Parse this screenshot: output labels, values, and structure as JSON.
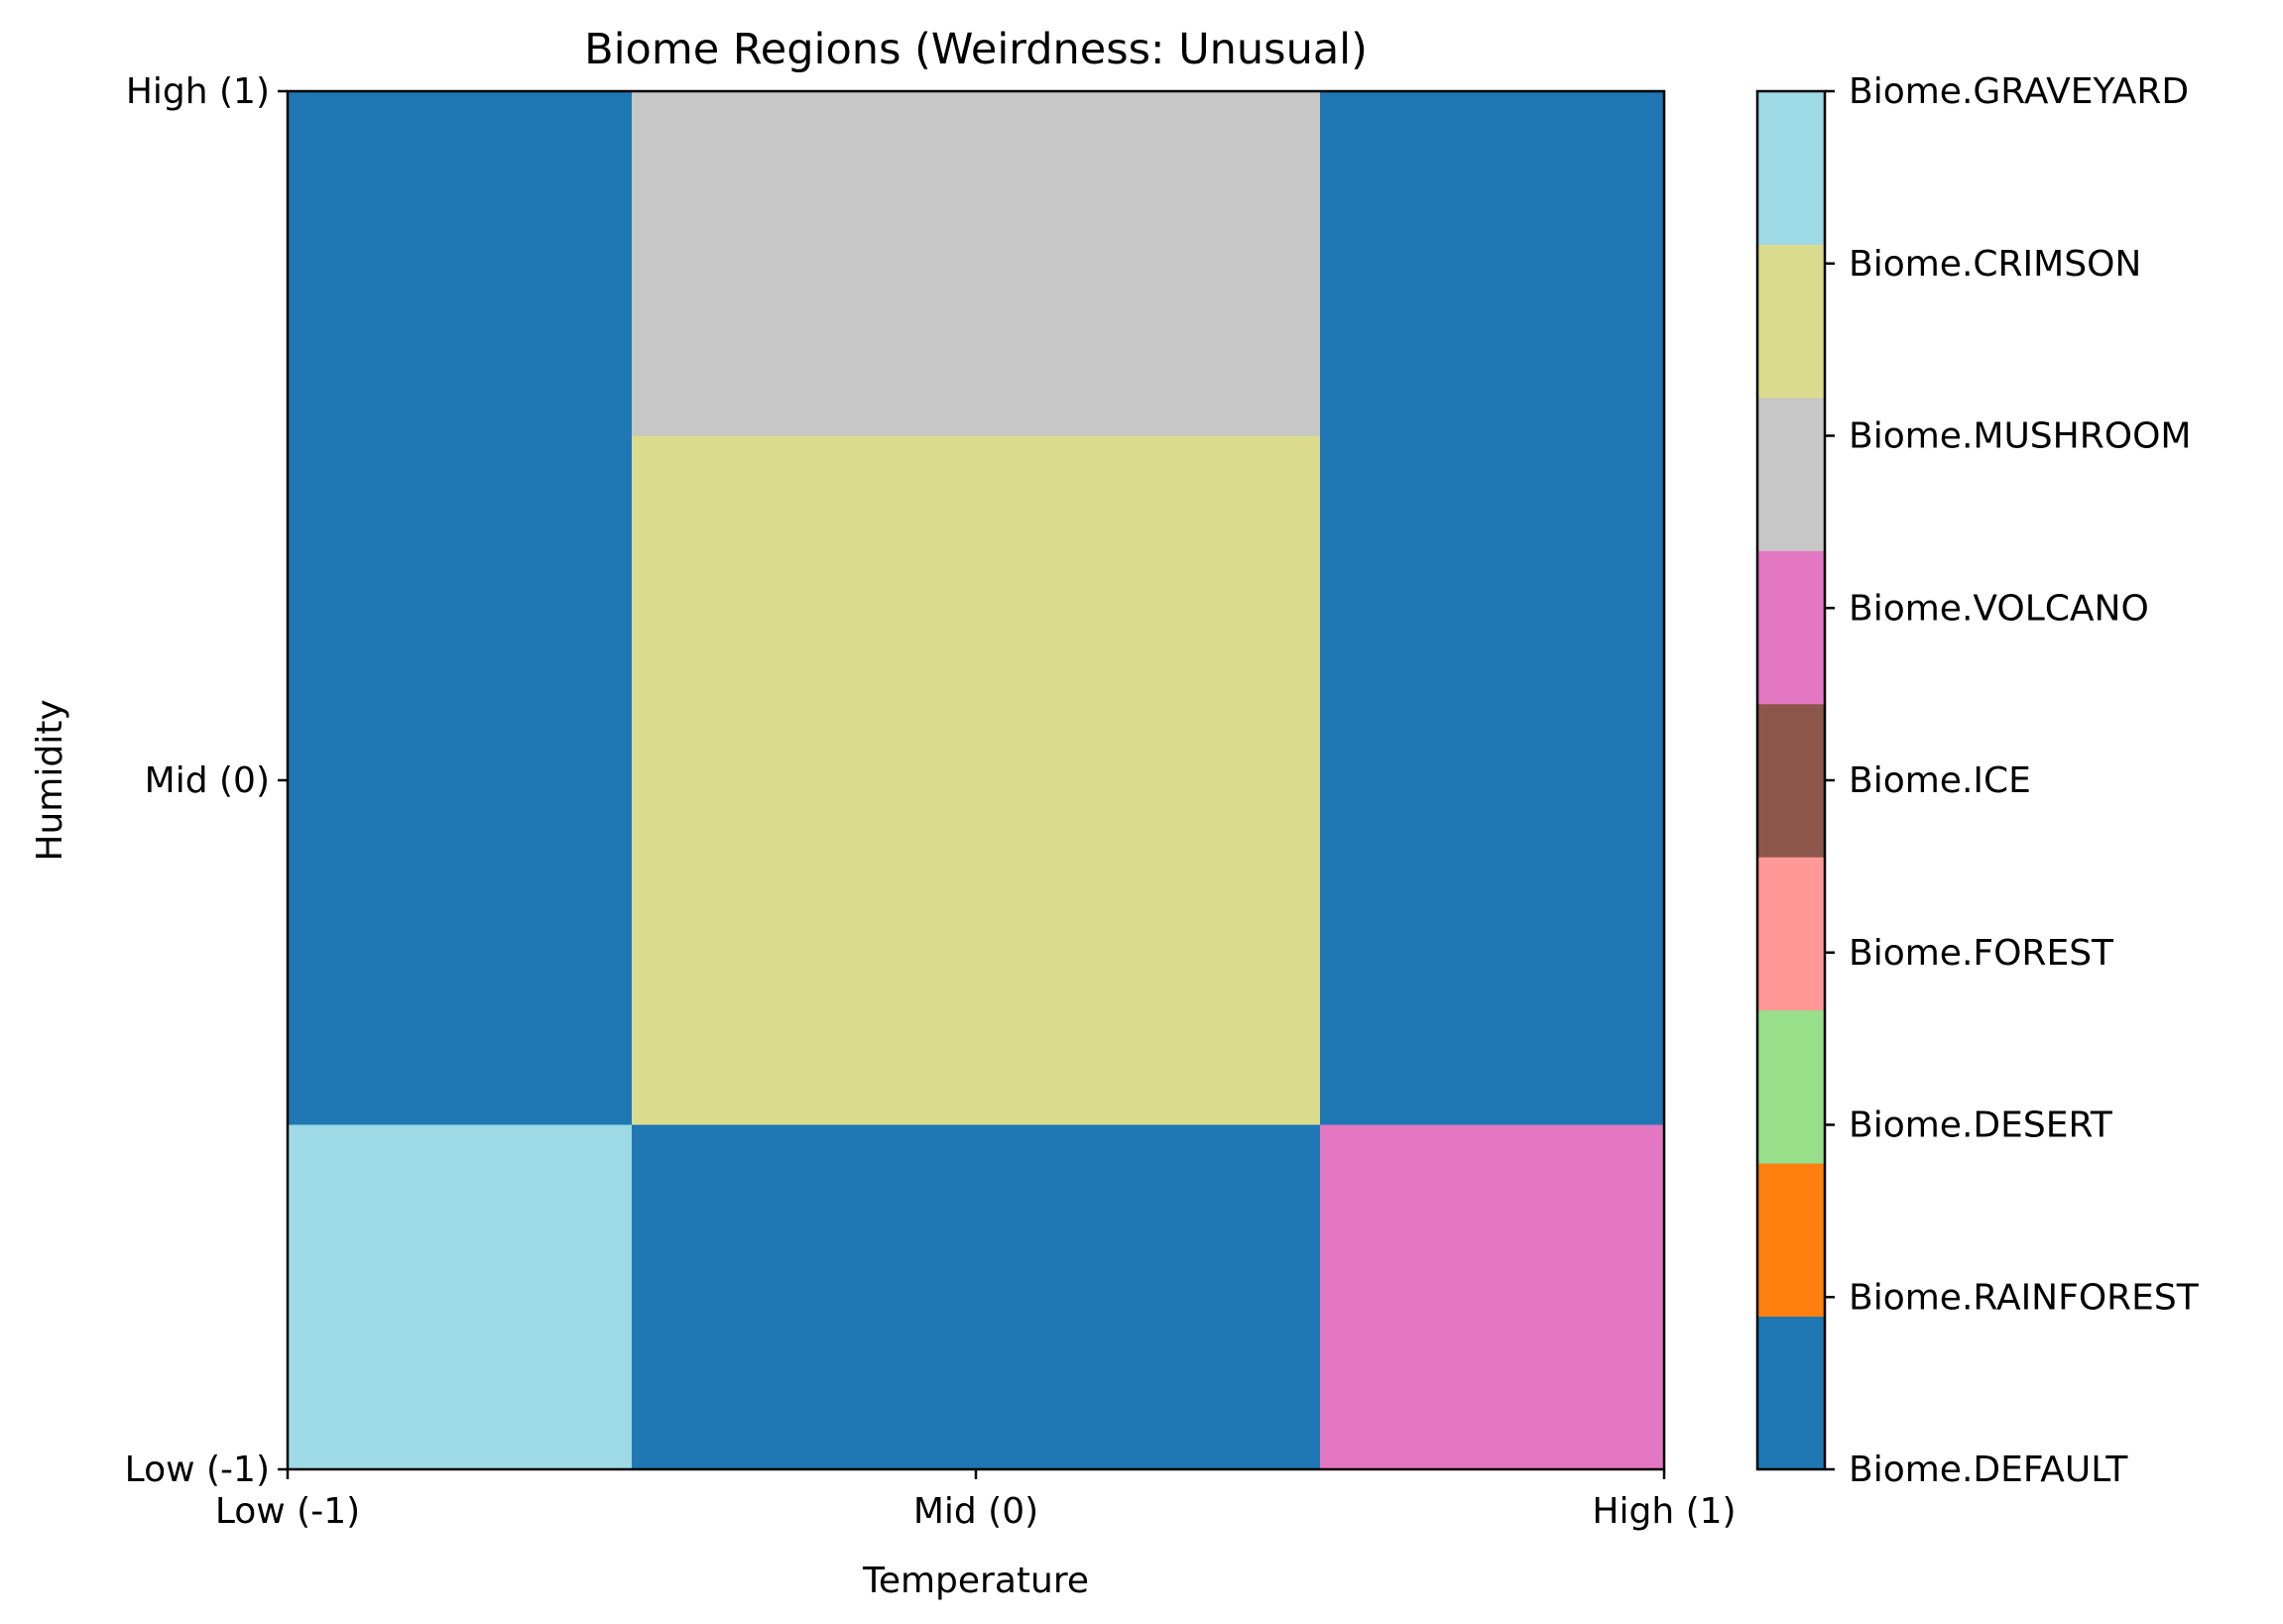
{
  "chart_data": {
    "type": "heatmap",
    "title": "Biome Regions (Weirdness: Unusual)",
    "xlabel": "Temperature",
    "ylabel": "Humidity",
    "x_ticks": [
      {
        "value": -1,
        "label": "Low (-1)"
      },
      {
        "value": 0,
        "label": "Mid (0)"
      },
      {
        "value": 1,
        "label": "High (1)"
      }
    ],
    "y_ticks": [
      {
        "value": -1,
        "label": "Low (-1)"
      },
      {
        "value": 0,
        "label": "Mid (0)"
      },
      {
        "value": 1,
        "label": "High (1)"
      }
    ],
    "xlim": [
      -1,
      1
    ],
    "ylim": [
      -1,
      1
    ],
    "x_edges": [
      -1,
      -0.5,
      0.5,
      1
    ],
    "y_edges": [
      -1,
      -0.5,
      0.5,
      1
    ],
    "cells": [
      [
        "Biome.GRAVEYARD",
        "Biome.DEFAULT",
        "Biome.VOLCANO"
      ],
      [
        "Biome.DEFAULT",
        "Biome.CRIMSON",
        "Biome.DEFAULT"
      ],
      [
        "Biome.DEFAULT",
        "Biome.MUSHROOM",
        "Biome.DEFAULT"
      ]
    ],
    "colorbar": [
      {
        "label": "Biome.DEFAULT",
        "color": "#1f77b4"
      },
      {
        "label": "Biome.RAINFOREST",
        "color": "#ff7f0e"
      },
      {
        "label": "Biome.DESERT",
        "color": "#98df8a"
      },
      {
        "label": "Biome.FOREST",
        "color": "#ff9896"
      },
      {
        "label": "Biome.ICE",
        "color": "#8c564b"
      },
      {
        "label": "Biome.VOLCANO",
        "color": "#e377c2"
      },
      {
        "label": "Biome.MUSHROOM",
        "color": "#c7c7c7"
      },
      {
        "label": "Biome.CRIMSON",
        "color": "#dbdb8d"
      },
      {
        "label": "Biome.GRAVEYARD",
        "color": "#9edae5"
      }
    ],
    "grid": false
  }
}
